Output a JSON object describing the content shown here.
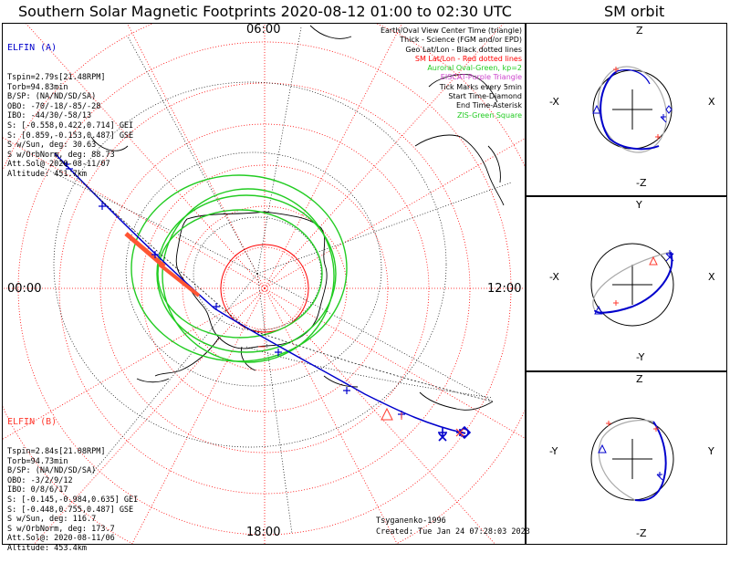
{
  "title": "Southern Solar Magnetic Footprints 2020-08-12 01:00 to 02:30 UTC",
  "orbit_title": "SM orbit",
  "mlt_labels": {
    "top": "06:00",
    "left": "00:00",
    "right": "12:00",
    "bottom": "18:00"
  },
  "legend": [
    {
      "text": "Earth/Oval View Center Time (triangle)",
      "color": "#000000"
    },
    {
      "text": "Thick - Science (FGM and/or EPD)",
      "color": "#000000"
    },
    {
      "text": "Geo Lat/Lon - Black dotted lines",
      "color": "#000000"
    },
    {
      "text": "SM Lat/Lon - Red dotted lines",
      "color": "#ff0000"
    },
    {
      "text": "Auroral Oval-Green, kp=2",
      "color": "#22cc22"
    },
    {
      "text": "EISCAT-Purple Triangle",
      "color": "#cc44cc"
    },
    {
      "text": "Tick Marks every 5min",
      "color": "#000000"
    },
    {
      "text": "Start Time-Diamond",
      "color": "#000000"
    },
    {
      "text": "End Time-Asterisk",
      "color": "#000000"
    },
    {
      "text": "ZIS-Green Square",
      "color": "#22cc22"
    }
  ],
  "elfin_a": {
    "name": "ELFIN (A)",
    "lines": [
      "Tspin=2.79s[21.48RPM]",
      "Torb=94.83min",
      "B/SP: (NA/ND/SD/SA)",
      "OBO: -70/-18/-85/-28",
      "IBO: -44/30/-58/13",
      "S: [-0.558,0.422,0.714] GEI",
      "S: [0.859,-0.153,0.487] GSE",
      "S w/Sun, deg: 30.63",
      "S w/OrbNorm, deg: 88.73",
      "Att.Sol@ 2020-08-11/07",
      "Altitude: 451.7km"
    ]
  },
  "elfin_b": {
    "name": "ELFIN (B)",
    "lines": [
      "Tspin=2.84s[21.08RPM]",
      "Torb=94.73min",
      "B/SP: (NA/ND/SD/SA)",
      "OBO: -3/2/9/12",
      "IBO: 0/8/6/17",
      "S: [-0.145,-0.984,0.635] GEI",
      "S: [-0.448,0.755,0.487] GSE",
      "S w/Sun, deg: 116.7",
      "S w/OrbNorm, deg: 173.7",
      "Att.Sol@: 2020-08-11/06",
      "Altitude: 453.4km"
    ]
  },
  "credits": {
    "author": "Tsyganenko-1996",
    "created": "Created: Tue Jan 24 07:28:03 2023"
  },
  "orbit_panels": [
    {
      "top": "Z",
      "bottom": "-Z",
      "left": "-X",
      "right": "X"
    },
    {
      "top": "Y",
      "bottom": "-Y",
      "left": "-X",
      "right": "X"
    },
    {
      "top": "Z",
      "bottom": "-Z",
      "left": "-Y",
      "right": "Y"
    }
  ],
  "colors": {
    "probe_a": "#0000cc",
    "probe_b": "#ff3b30",
    "oval": "#22cc22",
    "sm_grid": "#ff0000",
    "geo_grid": "#000000"
  }
}
